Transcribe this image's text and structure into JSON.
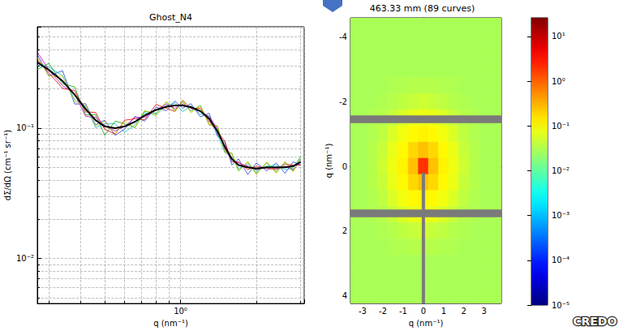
{
  "chart_data": [
    {
      "type": "line",
      "title": "Ghost_N4",
      "x_label": "q (nm⁻¹)",
      "y_label": "dΣ/dΩ (cm⁻¹ sr⁻¹)",
      "log": true,
      "grid": true,
      "xlim": [
        0.27,
        3.1
      ],
      "ylim": [
        0.0045,
        0.6
      ],
      "xticks": [
        {
          "value": 1,
          "label": "10⁰"
        }
      ],
      "yticks": [
        {
          "value": 0.01,
          "label": "10⁻²"
        },
        {
          "value": 0.1,
          "label": "10⁻¹"
        }
      ],
      "x": [
        0.27,
        0.3,
        0.34,
        0.38,
        0.42,
        0.46,
        0.5,
        0.55,
        0.6,
        0.66,
        0.72,
        0.8,
        0.88,
        0.95,
        1.02,
        1.1,
        1.2,
        1.3,
        1.4,
        1.5,
        1.6,
        1.7,
        1.85,
        2.0,
        2.2,
        2.4,
        2.6,
        2.8,
        3.0
      ],
      "series": [
        {
          "color": "#1f3fd0",
          "values": [
            0.368,
            0.252,
            0.276,
            0.153,
            0.154,
            0.106,
            0.115,
            0.088,
            0.098,
            0.123,
            0.113,
            0.145,
            0.136,
            0.161,
            0.142,
            0.154,
            0.122,
            0.13,
            0.087,
            0.078,
            0.052,
            0.058,
            0.044,
            0.054,
            0.047,
            0.054,
            0.045,
            0.055,
            0.052
          ]
        },
        {
          "color": "#00a000",
          "values": [
            0.282,
            0.314,
            0.219,
            0.207,
            0.126,
            0.127,
            0.088,
            0.113,
            0.108,
            0.101,
            0.135,
            0.13,
            0.159,
            0.137,
            0.159,
            0.135,
            0.149,
            0.106,
            0.104,
            0.066,
            0.064,
            0.047,
            0.055,
            0.045,
            0.054,
            0.046,
            0.055,
            0.047,
            0.058
          ]
        },
        {
          "color": "#e00000",
          "values": [
            0.336,
            0.266,
            0.202,
            0.194,
            0.133,
            0.132,
            0.098,
            0.09,
            0.115,
            0.118,
            0.116,
            0.152,
            0.142,
            0.134,
            0.164,
            0.141,
            0.142,
            0.112,
            0.095,
            0.079,
            0.055,
            0.055,
            0.048,
            0.051,
            0.049,
            0.048,
            0.053,
            0.052,
            0.052
          ]
        },
        {
          "color": "#00c0c0",
          "values": [
            0.304,
            0.294,
            0.253,
            0.166,
            0.147,
            0.101,
            0.108,
            0.108,
            0.093,
            0.106,
            0.131,
            0.127,
            0.149,
            0.156,
            0.134,
            0.148,
            0.128,
            0.124,
            0.09,
            0.065,
            0.06,
            0.049,
            0.053,
            0.047,
            0.051,
            0.052,
            0.048,
            0.049,
            0.061
          ]
        },
        {
          "color": "#c000c0",
          "values": [
            0.384,
            0.28,
            0.212,
            0.184,
            0.123,
            0.121,
            0.105,
            0.095,
            0.103,
            0.121,
            0.121,
            0.138,
            0.153,
            0.142,
            0.153,
            0.142,
            0.135,
            0.122,
            0.1,
            0.069,
            0.057,
            0.054,
            0.051,
            0.048,
            0.05,
            0.049,
            0.051,
            0.048,
            0.055
          ]
        },
        {
          "color": "#c8c800",
          "values": [
            0.35,
            0.25,
            0.25,
            0.16,
            0.15,
            0.104,
            0.113,
            0.09,
            0.113,
            0.101,
            0.137,
            0.124,
            0.16,
            0.134,
            0.164,
            0.131,
            0.148,
            0.106,
            0.104,
            0.065,
            0.064,
            0.047,
            0.055,
            0.044,
            0.055,
            0.045,
            0.055,
            0.046,
            0.06
          ]
        },
        {
          "color": "#000000",
          "values": [
            0.32,
            0.28,
            0.23,
            0.18,
            0.14,
            0.115,
            0.103,
            0.1,
            0.103,
            0.112,
            0.125,
            0.138,
            0.146,
            0.149,
            0.149,
            0.145,
            0.135,
            0.118,
            0.095,
            0.072,
            0.058,
            0.052,
            0.05,
            0.049,
            0.05,
            0.05,
            0.05,
            0.051,
            0.055
          ]
        }
      ]
    },
    {
      "type": "heatmap",
      "title": "463.33 mm (89 curves)",
      "x_label": "q (nm⁻¹)",
      "y_label": "q (nm⁻¹)",
      "xlim": [
        -3.6,
        3.85
      ],
      "ylim": [
        -4.6,
        4.25
      ],
      "xticks": [
        -3,
        -2,
        -1,
        0,
        1,
        2,
        3
      ],
      "yticks": [
        -4,
        -2,
        0,
        2,
        4
      ],
      "x": [
        -3.5,
        -3,
        -2.5,
        -2,
        -1.5,
        -1,
        -0.5,
        0,
        0.5,
        1,
        1.5,
        2,
        2.5,
        3,
        3.5,
        4
      ],
      "y": [
        -4.5,
        -4,
        -3.5,
        -3,
        -2.5,
        -2,
        -1.5,
        -1,
        -0.5,
        0,
        0.5,
        1,
        1.5,
        2,
        2.5,
        3,
        3.5,
        4,
        4.5
      ],
      "values": [
        [
          0.03,
          0.03,
          0.03,
          0.03,
          0.03,
          0.03,
          0.03,
          0.03,
          0.03,
          0.03,
          0.03,
          0.03,
          0.03,
          0.03,
          0.03,
          0.03
        ],
        [
          0.03,
          0.03,
          0.03,
          0.03,
          0.03,
          0.03,
          0.03,
          0.03,
          0.03,
          0.03,
          0.03,
          0.03,
          0.03,
          0.03,
          0.03,
          0.03
        ],
        [
          0.03,
          0.03,
          0.03,
          0.03,
          0.03,
          0.03,
          0.03,
          0.03,
          0.03,
          0.03,
          0.03,
          0.03,
          0.03,
          0.03,
          0.03,
          0.03
        ],
        [
          0.03,
          0.03,
          0.03,
          0.03,
          0.03,
          0.03,
          0.03,
          0.03,
          0.03,
          0.03,
          0.03,
          0.03,
          0.03,
          0.03,
          0.03,
          0.03
        ],
        [
          0.03,
          0.03,
          0.03,
          0.03,
          0.032,
          0.033,
          0.035,
          0.035,
          0.035,
          0.033,
          0.032,
          0.03,
          0.03,
          0.03,
          0.03,
          0.03
        ],
        [
          0.03,
          0.03,
          0.03,
          0.032,
          0.035,
          0.04,
          0.045,
          0.05,
          0.045,
          0.04,
          0.035,
          0.032,
          0.03,
          0.03,
          0.03,
          0.03
        ],
        [
          0.03,
          0.03,
          0.032,
          0.035,
          0.045,
          0.06,
          0.075,
          0.08,
          0.075,
          0.06,
          0.045,
          0.035,
          0.032,
          0.03,
          0.03,
          0.03
        ],
        [
          0.03,
          0.03,
          0.033,
          0.04,
          0.06,
          0.085,
          0.11,
          0.12,
          0.11,
          0.085,
          0.06,
          0.04,
          0.033,
          0.03,
          0.03,
          0.03
        ],
        [
          0.03,
          0.03,
          0.035,
          0.045,
          0.075,
          0.11,
          0.18,
          0.25,
          0.18,
          0.11,
          0.075,
          0.045,
          0.035,
          0.03,
          0.03,
          0.03
        ],
        [
          0.03,
          0.03,
          0.035,
          0.05,
          0.08,
          0.12,
          0.25,
          2,
          0.25,
          0.12,
          0.08,
          0.05,
          0.035,
          0.03,
          0.03,
          0.03
        ],
        [
          0.03,
          0.03,
          0.035,
          0.045,
          0.075,
          0.11,
          0.18,
          0.25,
          0.18,
          0.11,
          0.075,
          0.045,
          0.035,
          0.03,
          0.03,
          0.03
        ],
        [
          0.03,
          0.03,
          0.033,
          0.04,
          0.06,
          0.085,
          0.11,
          0.12,
          0.11,
          0.085,
          0.06,
          0.04,
          0.033,
          0.03,
          0.03,
          0.03
        ],
        [
          0.03,
          0.03,
          0.032,
          0.035,
          0.045,
          0.06,
          0.075,
          0.08,
          0.075,
          0.06,
          0.045,
          0.035,
          0.032,
          0.03,
          0.03,
          0.03
        ],
        [
          0.03,
          0.03,
          0.03,
          0.032,
          0.035,
          0.04,
          0.045,
          0.05,
          0.045,
          0.04,
          0.035,
          0.032,
          0.03,
          0.03,
          0.03,
          0.03
        ],
        [
          0.03,
          0.03,
          0.03,
          0.03,
          0.032,
          0.033,
          0.035,
          0.035,
          0.035,
          0.033,
          0.032,
          0.03,
          0.03,
          0.03,
          0.03,
          0.03
        ],
        [
          0.03,
          0.03,
          0.03,
          0.03,
          0.03,
          0.03,
          0.03,
          0.03,
          0.03,
          0.03,
          0.03,
          0.03,
          0.03,
          0.03,
          0.03,
          0.03
        ],
        [
          0.03,
          0.03,
          0.03,
          0.03,
          0.03,
          0.03,
          0.03,
          0.03,
          0.03,
          0.03,
          0.03,
          0.03,
          0.03,
          0.03,
          0.03,
          0.03
        ],
        [
          0.03,
          0.03,
          0.03,
          0.03,
          0.03,
          0.03,
          0.03,
          0.03,
          0.03,
          0.03,
          0.03,
          0.03,
          0.03,
          0.03,
          0.03,
          0.03
        ],
        [
          0.03,
          0.03,
          0.03,
          0.03,
          0.03,
          0.03,
          0.03,
          0.03,
          0.03,
          0.03,
          0.03,
          0.03,
          0.03,
          0.03,
          0.03,
          0.03
        ]
      ],
      "mask": [
        [
          -3.6,
          3.85,
          -1.58,
          -1.34
        ],
        [
          -3.6,
          3.85,
          1.34,
          1.58
        ],
        [
          -0.08,
          0.08,
          0.2,
          4.25
        ]
      ],
      "colorbar": {
        "range": [
          1e-05,
          26
        ],
        "ticks": [
          {
            "value": 1e-05,
            "label": "10⁻⁵"
          },
          {
            "value": 0.0001,
            "label": "10⁻⁴"
          },
          {
            "value": 0.001,
            "label": "10⁻³"
          },
          {
            "value": 0.01,
            "label": "10⁻²"
          },
          {
            "value": 0.1,
            "label": "10⁻¹"
          },
          {
            "value": 1,
            "label": "10⁰"
          },
          {
            "value": 10,
            "label": "10¹"
          }
        ]
      }
    }
  ],
  "logo": "CREDO"
}
